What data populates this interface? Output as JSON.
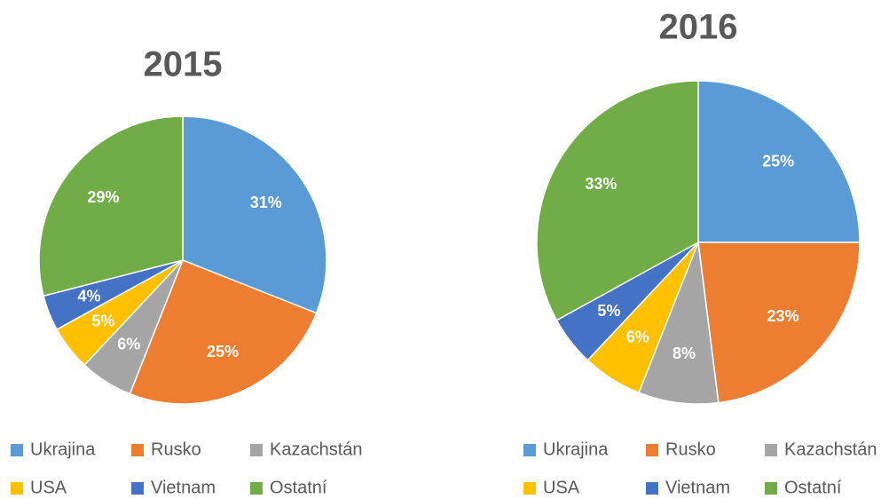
{
  "chart_data": [
    {
      "type": "pie",
      "title": "2015",
      "categories": [
        "Ukrajina",
        "Rusko",
        "Kazachstán",
        "USA",
        "Vietnam",
        "Ostatní"
      ],
      "values": [
        31,
        25,
        6,
        5,
        4,
        29
      ],
      "value_labels": [
        "31%",
        "25%",
        "6%",
        "5%",
        "4%",
        "29%"
      ],
      "colors": [
        "#5b9bd5",
        "#ed7d31",
        "#a5a5a5",
        "#ffc000",
        "#4472c4",
        "#70ad47"
      ]
    },
    {
      "type": "pie",
      "title": "2016",
      "categories": [
        "Ukrajina",
        "Rusko",
        "Kazachstán",
        "USA",
        "Vietnam",
        "Ostatní"
      ],
      "values": [
        25,
        23,
        8,
        6,
        5,
        33
      ],
      "value_labels": [
        "25%",
        "23%",
        "8%",
        "6%",
        "5%",
        "33%"
      ],
      "colors": [
        "#5b9bd5",
        "#ed7d31",
        "#a5a5a5",
        "#ffc000",
        "#4472c4",
        "#70ad47"
      ]
    }
  ]
}
